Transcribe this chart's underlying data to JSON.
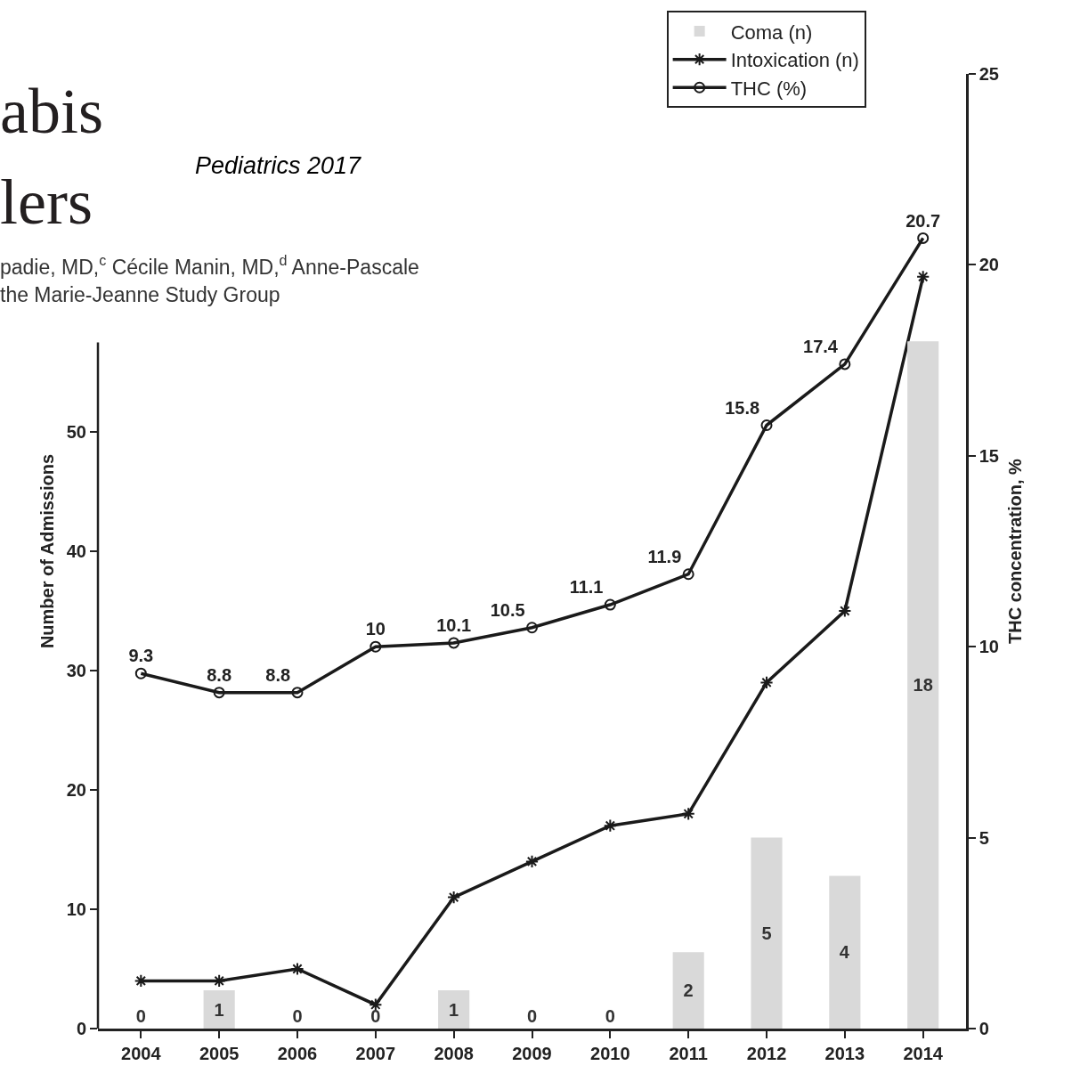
{
  "chart_data": {
    "type": "bar",
    "ylabel": "Number of Admissions",
    "y2label": "THC concentration, %",
    "annotations": [
      "abis",
      "lers",
      "Pediatrics 2017",
      "padie, MD,$^{c}$ Cécile Manin, MD,$^{d}$ Anne-Pascale",
      "the Marie-Jeanne Study Group"
    ],
    "categories": [
      "2004",
      "2005",
      "2006",
      "2007",
      "2008",
      "2009",
      "2010",
      "2011",
      "2012",
      "2013",
      "2014"
    ],
    "series": [
      {
        "name": "Coma (n)",
        "axis": "y2",
        "color": "#d9d9d9",
        "values": [
          0,
          1,
          0,
          0,
          1,
          0,
          0,
          2,
          5,
          4,
          18
        ],
        "value_labels": [
          "0",
          "1",
          "0",
          "0",
          "1",
          "0",
          "0",
          "2",
          "5",
          "4",
          "18"
        ]
      },
      {
        "name": "Intoxication (n)",
        "type": "line",
        "color": "#1a1a1a",
        "marker": "cross",
        "values": [
          4,
          4,
          5,
          2,
          11,
          14,
          17,
          18,
          29,
          35,
          63
        ]
      },
      {
        "name": "THC (%)",
        "type": "line",
        "axis": "y2",
        "color": "#1a1a1a",
        "marker": "circle",
        "values": [
          9.3,
          8.8,
          8.8,
          10,
          10.1,
          10.5,
          11.1,
          11.9,
          15.8,
          17.4,
          20.7
        ],
        "value_labels": [
          "9.3",
          "8.8",
          "8.8",
          "10",
          "10.1",
          "10.5",
          "11.1",
          "11.9",
          "15.8",
          "17.4",
          "20.7"
        ]
      }
    ],
    "ylim": [
      0,
      80
    ],
    "yticks": [
      0,
      10,
      20,
      30,
      40,
      50
    ],
    "y2lim": [
      0,
      25
    ],
    "y2ticks": [
      0,
      5,
      10,
      15,
      20,
      25
    ],
    "grid": false,
    "legend": "top right",
    "line_style": "solid"
  }
}
